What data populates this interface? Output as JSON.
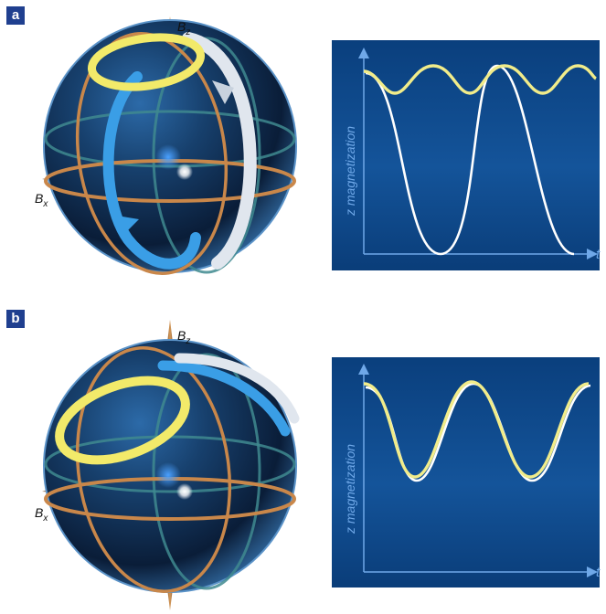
{
  "panels": [
    {
      "label": "a",
      "bloch_sphere": {
        "axis_z": {
          "symbol": "B",
          "subscript": "z"
        },
        "axis_x": {
          "symbol": "B",
          "subscript": "x"
        }
      },
      "plot": {
        "ylabel": "z magnetization",
        "xlabel": "t",
        "background": "#0e4d8f"
      }
    },
    {
      "label": "b",
      "bloch_sphere": {
        "axis_z": {
          "symbol": "B",
          "subscript": "z"
        },
        "axis_x": {
          "symbol": "B",
          "subscript": "x"
        }
      },
      "plot": {
        "ylabel": "z magnetization",
        "xlabel": "t",
        "background": "#0e4d8f"
      }
    }
  ],
  "colors": {
    "yellow_trace": "#f1ec8a",
    "white_trace": "#ffffff",
    "axis_color": "#6fa8e8",
    "ring_copper": "#c9874a",
    "ring_teal": "#3f8a8f",
    "arrow_blue": "#3a9ee6",
    "arrow_white": "#e0e6ee",
    "arrow_yellow": "#f2ea6a",
    "label_box": "#1f3f8f"
  }
}
